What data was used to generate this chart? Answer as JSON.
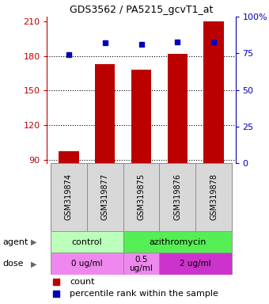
{
  "title": "GDS3562 / PA5215_gcvT1_at",
  "samples": [
    "GSM319874",
    "GSM319877",
    "GSM319875",
    "GSM319876",
    "GSM319878"
  ],
  "bar_values": [
    97,
    173,
    168,
    182,
    210
  ],
  "percentile_values": [
    74,
    82,
    81,
    83,
    83
  ],
  "bar_color": "#bb0000",
  "dot_color": "#0000bb",
  "ylim_left": [
    87,
    214
  ],
  "ylim_right": [
    0,
    100
  ],
  "yticks_left": [
    90,
    120,
    150,
    180,
    210
  ],
  "yticks_right": [
    0,
    25,
    50,
    75,
    100
  ],
  "grid_values": [
    90,
    120,
    150,
    180
  ],
  "bar_width": 0.55,
  "x_positions": [
    0,
    1,
    2,
    3,
    4
  ],
  "sample_bg": "#d8d8d8",
  "agent_groups": [
    {
      "label": "control",
      "xmin": -0.5,
      "xmax": 1.5,
      "color": "#bbffbb"
    },
    {
      "label": "azithromycin",
      "xmin": 1.5,
      "xmax": 4.5,
      "color": "#55ee55"
    }
  ],
  "dose_groups": [
    {
      "label": "0 ug/ml",
      "xmin": -0.5,
      "xmax": 1.5,
      "color": "#ee88ee"
    },
    {
      "label": "0.5\nug/ml",
      "xmin": 1.5,
      "xmax": 2.5,
      "color": "#ee88ee"
    },
    {
      "label": "2 ug/ml",
      "xmin": 2.5,
      "xmax": 4.5,
      "color": "#cc33cc"
    }
  ],
  "legend_count_color": "#bb0000",
  "legend_dot_color": "#0000bb"
}
